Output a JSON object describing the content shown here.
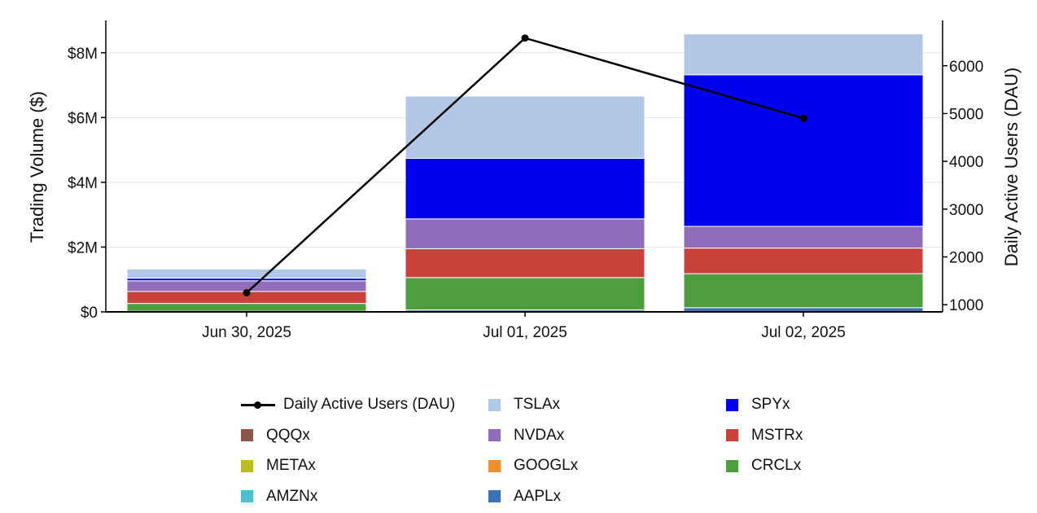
{
  "chart_data": {
    "type": "bar",
    "stacked": true,
    "categories": [
      "Jun 30, 2025",
      "Jul 01, 2025",
      "Jul 02, 2025"
    ],
    "ylabel": "Trading Volume ($)",
    "y2label": "Daily Active Users (DAU)",
    "ylim": [
      0,
      9000000
    ],
    "y2lim": [
      850,
      6950
    ],
    "yticks": [
      {
        "value": 0,
        "label": "$0"
      },
      {
        "value": 2000000,
        "label": "$2M"
      },
      {
        "value": 4000000,
        "label": "$4M"
      },
      {
        "value": 6000000,
        "label": "$6M"
      },
      {
        "value": 8000000,
        "label": "$8M"
      }
    ],
    "y2ticks": [
      {
        "value": 1000,
        "label": "1000"
      },
      {
        "value": 2000,
        "label": "2000"
      },
      {
        "value": 3000,
        "label": "3000"
      },
      {
        "value": 4000,
        "label": "4000"
      },
      {
        "value": 5000,
        "label": "5000"
      },
      {
        "value": 6000,
        "label": "6000"
      }
    ],
    "grid": true,
    "legend_position": "bottom",
    "series": [
      {
        "name": "AMZNx",
        "color": "#4fbfcf",
        "values": [
          0,
          0,
          0
        ]
      },
      {
        "name": "AAPLx",
        "color": "#3a72b4",
        "values": [
          20000,
          60000,
          130000
        ]
      },
      {
        "name": "METAx",
        "color": "#bcbd22",
        "values": [
          0,
          0,
          0
        ]
      },
      {
        "name": "GOOGLx",
        "color": "#f28e2b",
        "values": [
          0,
          0,
          0
        ]
      },
      {
        "name": "CRCLx",
        "color": "#4e9d3e",
        "values": [
          240000,
          1000000,
          1050000
        ]
      },
      {
        "name": "MSTRx",
        "color": "#c8413b",
        "values": [
          370000,
          890000,
          790000
        ]
      },
      {
        "name": "QQQx",
        "color": "#8c564b",
        "values": [
          0,
          0,
          0
        ]
      },
      {
        "name": "NVDAx",
        "color": "#8f6dbb",
        "values": [
          330000,
          920000,
          670000
        ]
      },
      {
        "name": "SPYx",
        "color": "#0000ee",
        "values": [
          80000,
          1870000,
          4680000
        ]
      },
      {
        "name": "TSLAx",
        "color": "#b2c7e6",
        "values": [
          280000,
          1920000,
          1260000
        ]
      }
    ],
    "line_series": {
      "name": "Daily Active Users (DAU)",
      "color": "#000000",
      "axis": "right",
      "values": [
        1250,
        6580,
        4900
      ]
    },
    "legend": [
      {
        "name": "Daily Active Users (DAU)",
        "kind": "line",
        "color": "#000000"
      },
      {
        "name": "TSLAx",
        "kind": "box",
        "color": "#b2c7e6"
      },
      {
        "name": "SPYx",
        "kind": "box",
        "color": "#0000ee"
      },
      {
        "name": "QQQx",
        "kind": "box",
        "color": "#8c564b"
      },
      {
        "name": "NVDAx",
        "kind": "box",
        "color": "#8f6dbb"
      },
      {
        "name": "MSTRx",
        "kind": "box",
        "color": "#c8413b"
      },
      {
        "name": "METAx",
        "kind": "box",
        "color": "#bcbd22"
      },
      {
        "name": "GOOGLx",
        "kind": "box",
        "color": "#f28e2b"
      },
      {
        "name": "CRCLx",
        "kind": "box",
        "color": "#4e9d3e"
      },
      {
        "name": "AMZNx",
        "kind": "box",
        "color": "#4fbfcf"
      },
      {
        "name": "AAPLx",
        "kind": "box",
        "color": "#3a72b4"
      }
    ]
  }
}
